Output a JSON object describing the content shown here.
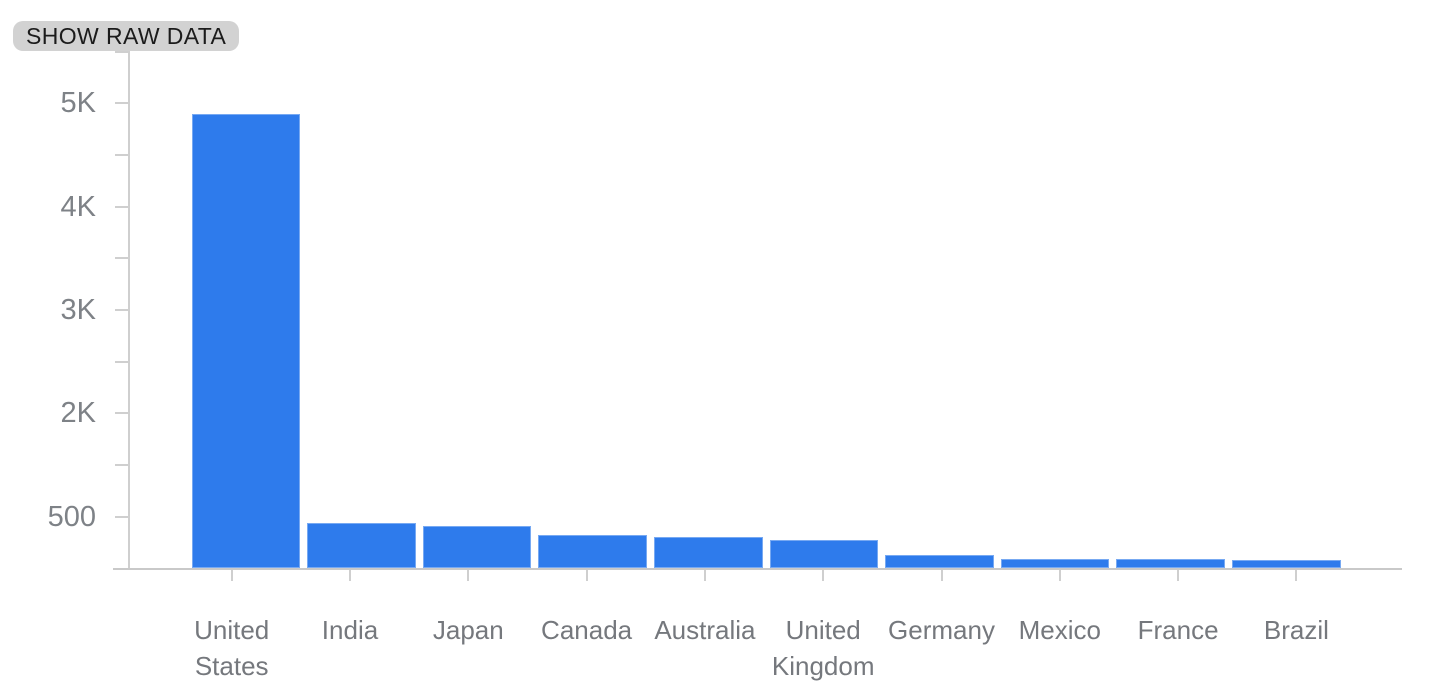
{
  "toolbar": {
    "show_raw_data_label": "SHOW RAW DATA"
  },
  "chart_data": {
    "type": "bar",
    "categories": [
      "United States",
      "India",
      "Japan",
      "Canada",
      "Australia",
      "United Kingdom",
      "Germany",
      "Mexico",
      "France",
      "Brazil"
    ],
    "values": [
      4880,
      480,
      455,
      360,
      330,
      305,
      135,
      95,
      92,
      85
    ],
    "title": "",
    "xlabel": "",
    "ylabel": "",
    "y_tick_labels": [
      "5K",
      "4K",
      "3K",
      "2K",
      "500"
    ],
    "ylim": [
      0,
      5500
    ],
    "grid": "off",
    "legend": "none",
    "bar_color": "#2e7bec",
    "axis_color": "#cfcfcf",
    "label_color": "#75787d"
  }
}
